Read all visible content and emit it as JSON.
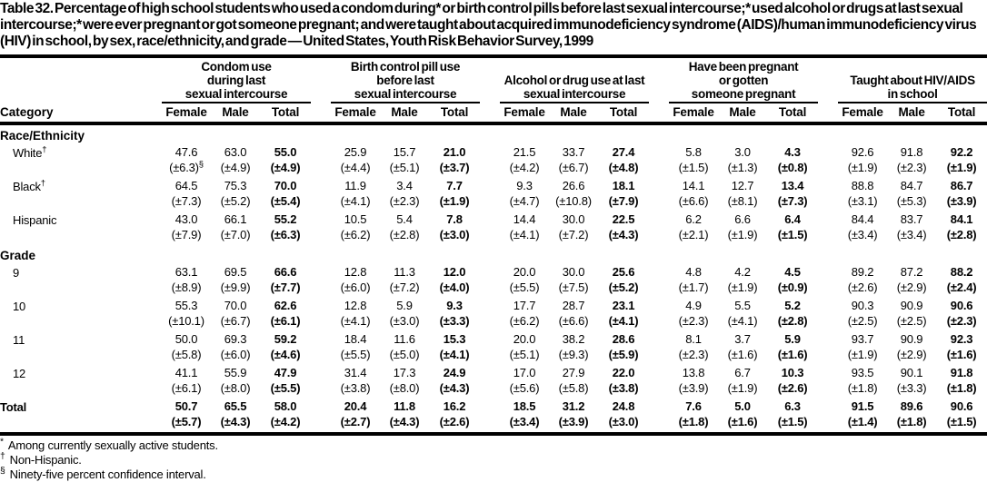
{
  "title": "Table 32. Percentage of high school students who used a condom during* or birth control pills before last sexual intercourse;* used alcohol or drugs at last sexual intercourse;* were ever pregnant or got someone pregnant; and were taught about acquired immunodeficiency syndrome (AIDS)/human immunodeficiency virus (HIV) in school, by sex, race/ethnicity, and grade — United States, Youth Risk Behavior Survey, 1999",
  "colors": {
    "text": "#000000",
    "rule": "#000000",
    "background": "#ffffff"
  },
  "table": {
    "category_header": "Category",
    "sub_headers": [
      "Female",
      "Male",
      "Total"
    ],
    "groups": [
      {
        "lines": [
          "Condom use",
          "during last",
          "sexual intercourse"
        ]
      },
      {
        "lines": [
          "Birth control pill use",
          "before last",
          "sexual intercourse"
        ]
      },
      {
        "lines": [
          "Alcohol or drug use at last",
          "sexual intercourse"
        ]
      },
      {
        "lines": [
          "Have been pregnant",
          "or gotten",
          "someone pregnant"
        ]
      },
      {
        "lines": [
          "Taught about HIV/AIDS",
          "in school"
        ]
      }
    ],
    "sections": [
      {
        "label": "Race/Ethnicity",
        "rows": [
          {
            "label": "White",
            "label_sup": "†",
            "ci_note_sup": "§",
            "values": [
              "47.6",
              "63.0",
              "55.0",
              "25.9",
              "15.7",
              "21.0",
              "21.5",
              "33.7",
              "27.4",
              "5.8",
              "3.0",
              "4.3",
              "92.6",
              "91.8",
              "92.2"
            ],
            "ci": [
              "(±6.3)",
              "(±4.9)",
              "(±4.9)",
              "(±4.4)",
              "(±5.1)",
              "(±3.7)",
              "(±4.2)",
              "(±6.7)",
              "(±4.8)",
              "(±1.5)",
              "(±1.3)",
              "(±0.8)",
              "(±1.9)",
              "(±2.3)",
              "(±1.9)"
            ]
          },
          {
            "label": "Black",
            "label_sup": "†",
            "values": [
              "64.5",
              "75.3",
              "70.0",
              "11.9",
              "3.4",
              "7.7",
              "9.3",
              "26.6",
              "18.1",
              "14.1",
              "12.7",
              "13.4",
              "88.8",
              "84.7",
              "86.7"
            ],
            "ci": [
              "(±7.3)",
              "(±5.2)",
              "(±5.4)",
              "(±4.1)",
              "(±2.3)",
              "(±1.9)",
              "(±4.7)",
              "(±10.8)",
              "(±7.9)",
              "(±6.6)",
              "(±8.1)",
              "(±7.3)",
              "(±3.1)",
              "(±5.3)",
              "(±3.9)"
            ]
          },
          {
            "label": "Hispanic",
            "values": [
              "43.0",
              "66.1",
              "55.2",
              "10.5",
              "5.4",
              "7.8",
              "14.4",
              "30.0",
              "22.5",
              "6.2",
              "6.6",
              "6.4",
              "84.4",
              "83.7",
              "84.1"
            ],
            "ci": [
              "(±7.9)",
              "(±7.0)",
              "(±6.3)",
              "(±6.2)",
              "(±2.8)",
              "(±3.0)",
              "(±4.1)",
              "(±7.2)",
              "(±4.3)",
              "(±2.1)",
              "(±1.9)",
              "(±1.5)",
              "(±3.4)",
              "(±3.4)",
              "(±2.8)"
            ]
          }
        ]
      },
      {
        "label": "Grade",
        "rows": [
          {
            "label": "9",
            "values": [
              "63.1",
              "69.5",
              "66.6",
              "12.8",
              "11.3",
              "12.0",
              "20.0",
              "30.0",
              "25.6",
              "4.8",
              "4.2",
              "4.5",
              "89.2",
              "87.2",
              "88.2"
            ],
            "ci": [
              "(±8.9)",
              "(±9.9)",
              "(±7.7)",
              "(±6.0)",
              "(±7.2)",
              "(±4.0)",
              "(±5.5)",
              "(±7.5)",
              "(±5.2)",
              "(±1.7)",
              "(±1.9)",
              "(±0.9)",
              "(±2.6)",
              "(±2.9)",
              "(±2.4)"
            ]
          },
          {
            "label": "10",
            "values": [
              "55.3",
              "70.0",
              "62.6",
              "12.8",
              "5.9",
              "9.3",
              "17.7",
              "28.7",
              "23.1",
              "4.9",
              "5.5",
              "5.2",
              "90.3",
              "90.9",
              "90.6"
            ],
            "ci": [
              "(±10.1)",
              "(±6.7)",
              "(±6.1)",
              "(±4.1)",
              "(±3.0)",
              "(±3.3)",
              "(±6.2)",
              "(±6.6)",
              "(±4.1)",
              "(±2.3)",
              "(±4.1)",
              "(±2.8)",
              "(±2.5)",
              "(±2.5)",
              "(±2.3)"
            ]
          },
          {
            "label": "11",
            "values": [
              "50.0",
              "69.3",
              "59.2",
              "18.4",
              "11.6",
              "15.3",
              "20.0",
              "38.2",
              "28.6",
              "8.1",
              "3.7",
              "5.9",
              "93.7",
              "90.9",
              "92.3"
            ],
            "ci": [
              "(±5.8)",
              "(±6.0)",
              "(±4.6)",
              "(±5.5)",
              "(±5.0)",
              "(±4.1)",
              "(±5.1)",
              "(±9.3)",
              "(±5.9)",
              "(±2.3)",
              "(±1.6)",
              "(±1.6)",
              "(±1.9)",
              "(±2.9)",
              "(±1.6)"
            ]
          },
          {
            "label": "12",
            "values": [
              "41.1",
              "55.9",
              "47.9",
              "31.4",
              "17.3",
              "24.9",
              "17.0",
              "27.9",
              "22.0",
              "13.8",
              "6.7",
              "10.3",
              "93.5",
              "90.1",
              "91.8"
            ],
            "ci": [
              "(±6.1)",
              "(±8.0)",
              "(±5.5)",
              "(±3.8)",
              "(±8.0)",
              "(±4.3)",
              "(±5.6)",
              "(±5.8)",
              "(±3.8)",
              "(±3.9)",
              "(±1.9)",
              "(±2.6)",
              "(±1.8)",
              "(±3.3)",
              "(±1.8)"
            ]
          }
        ]
      }
    ],
    "total_row": {
      "label": "Total",
      "values": [
        "50.7",
        "65.5",
        "58.0",
        "20.4",
        "11.8",
        "16.2",
        "18.5",
        "31.2",
        "24.8",
        "7.6",
        "5.0",
        "6.3",
        "91.5",
        "89.6",
        "90.6"
      ],
      "ci": [
        "(±5.7)",
        "(±4.3)",
        "(±4.2)",
        "(±2.7)",
        "(±4.3)",
        "(±2.6)",
        "(±3.4)",
        "(±3.9)",
        "(±3.0)",
        "(±1.8)",
        "(±1.6)",
        "(±1.5)",
        "(±1.4)",
        "(±1.8)",
        "(±1.5)"
      ]
    }
  },
  "footnotes": [
    {
      "sym": "*",
      "text": "Among currently sexually active students."
    },
    {
      "sym": "†",
      "text": "Non-Hispanic."
    },
    {
      "sym": "§",
      "text": "Ninety-five percent confidence interval."
    }
  ]
}
